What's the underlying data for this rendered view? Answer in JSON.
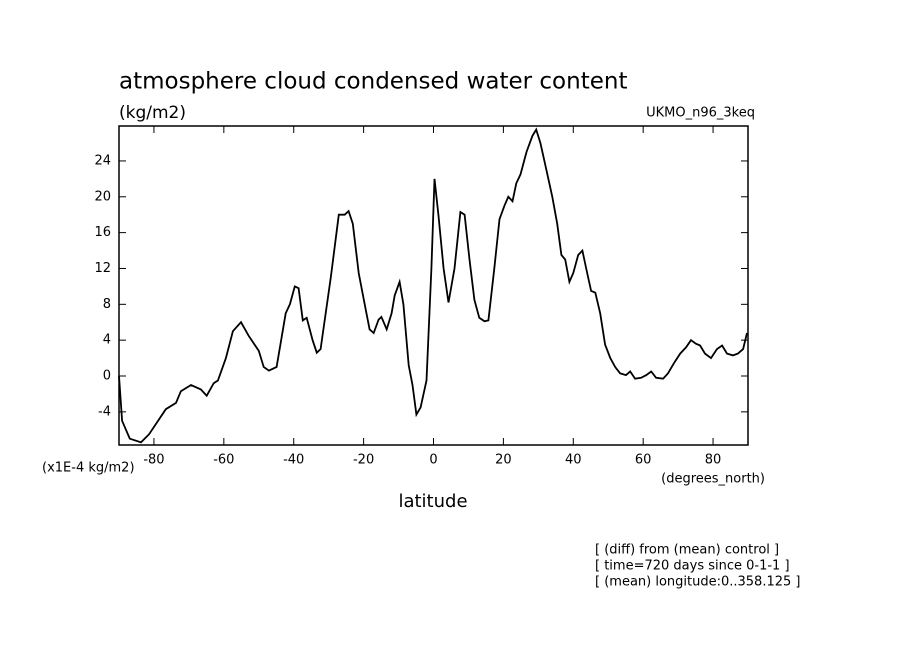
{
  "chart_data": {
    "type": "line",
    "title": "atmosphere cloud condensed water content",
    "subtitle": "(kg/m2)",
    "dataset_label": "UKMO_n96_3keq",
    "y_unit_label": "(x1E-4 kg/m2)",
    "x_unit_label": "(degrees_north)",
    "xlabel": "latitude",
    "annotations": [
      "[ (diff) from (mean) control ]",
      "[ time=720 days since 0-1-1 ]",
      "[ (mean) longitude:0..358.125 ]"
    ],
    "x": [
      -90,
      -89.1,
      -86.9,
      -83.7,
      -81.4,
      -76.6,
      -73.7,
      -72.3,
      -69.4,
      -66.6,
      -64.9,
      -62.9,
      -61.7,
      -59.4,
      -57.4,
      -55.1,
      -52.9,
      -50,
      -48.6,
      -47.1,
      -44.9,
      -42.3,
      -41.1,
      -39.7,
      -38.6,
      -37.4,
      -36.3,
      -34.6,
      -33.4,
      -32.3,
      -29.4,
      -27.1,
      -25.4,
      -24.3,
      -23.1,
      -21.4,
      -19.7,
      -18.3,
      -17.1,
      -15.7,
      -14.9,
      -13.4,
      -12,
      -11.1,
      -9.7,
      -8.6,
      -7.1,
      -6,
      -4.9,
      -3.7,
      -2,
      -0.6,
      0.3,
      1.4,
      2.9,
      4.3,
      6,
      7.7,
      8.9,
      10.3,
      11.7,
      13.1,
      14.6,
      15.7,
      17.4,
      18.9,
      20.3,
      21.4,
      22.6,
      23.7,
      24.9,
      26.6,
      28.3,
      29.4,
      30.6,
      32.3,
      34,
      35.4,
      36.6,
      37.7,
      38.9,
      40,
      41.4,
      42.6,
      43.7,
      45.1,
      46.3,
      47.7,
      49.1,
      50.6,
      52,
      53.4,
      55.1,
      56.3,
      57.7,
      59.4,
      60.9,
      62.3,
      63.7,
      65.7,
      67.1,
      68.9,
      70.6,
      72.3,
      73.7,
      75.1,
      76.3,
      77.7,
      79.4,
      81.1,
      82.6,
      84,
      85.7,
      87.1,
      88.6,
      89.7
    ],
    "series": [
      {
        "color": "#000000",
        "values": [
          0,
          -5,
          -7,
          -7.4,
          -6.5,
          -3.7,
          -3,
          -1.7,
          -1,
          -1.5,
          -2.2,
          -0.8,
          -0.5,
          2,
          5,
          6,
          4.5,
          2.8,
          1,
          0.6,
          1,
          7,
          8,
          10,
          9.8,
          6.2,
          6.5,
          4,
          2.6,
          3,
          11,
          18,
          18,
          18.4,
          17,
          11.5,
          8,
          5.2,
          4.8,
          6.3,
          6.6,
          5.2,
          7,
          9,
          10.5,
          8,
          1.2,
          -1,
          -4.3,
          -3.5,
          -0.5,
          12,
          22,
          18,
          12,
          8.2,
          12,
          18.3,
          18,
          13,
          8.5,
          6.5,
          6.1,
          6.2,
          12,
          17.5,
          19,
          20,
          19.5,
          21.5,
          22.5,
          25,
          26.8,
          27.5,
          26,
          23,
          20,
          17,
          13.5,
          13,
          10.5,
          11.5,
          13.5,
          14,
          12,
          9.5,
          9.3,
          7,
          3.5,
          2,
          1,
          0.3,
          0.1,
          0.5,
          -0.3,
          -0.2,
          0.1,
          0.5,
          -0.2,
          -0.3,
          0.3,
          1.5,
          2.5,
          3.2,
          4,
          3.6,
          3.4,
          2.5,
          2,
          3,
          3.4,
          2.5,
          2.3,
          2.5,
          3,
          4.8
        ]
      }
    ],
    "xlim": [
      -90,
      90
    ],
    "xticks": [
      -80,
      -60,
      -40,
      -20,
      0,
      20,
      40,
      60,
      80
    ],
    "ylim": [
      -7.7,
      27.9
    ],
    "yticks": [
      -4,
      0,
      4,
      8,
      12,
      16,
      20,
      24
    ]
  }
}
